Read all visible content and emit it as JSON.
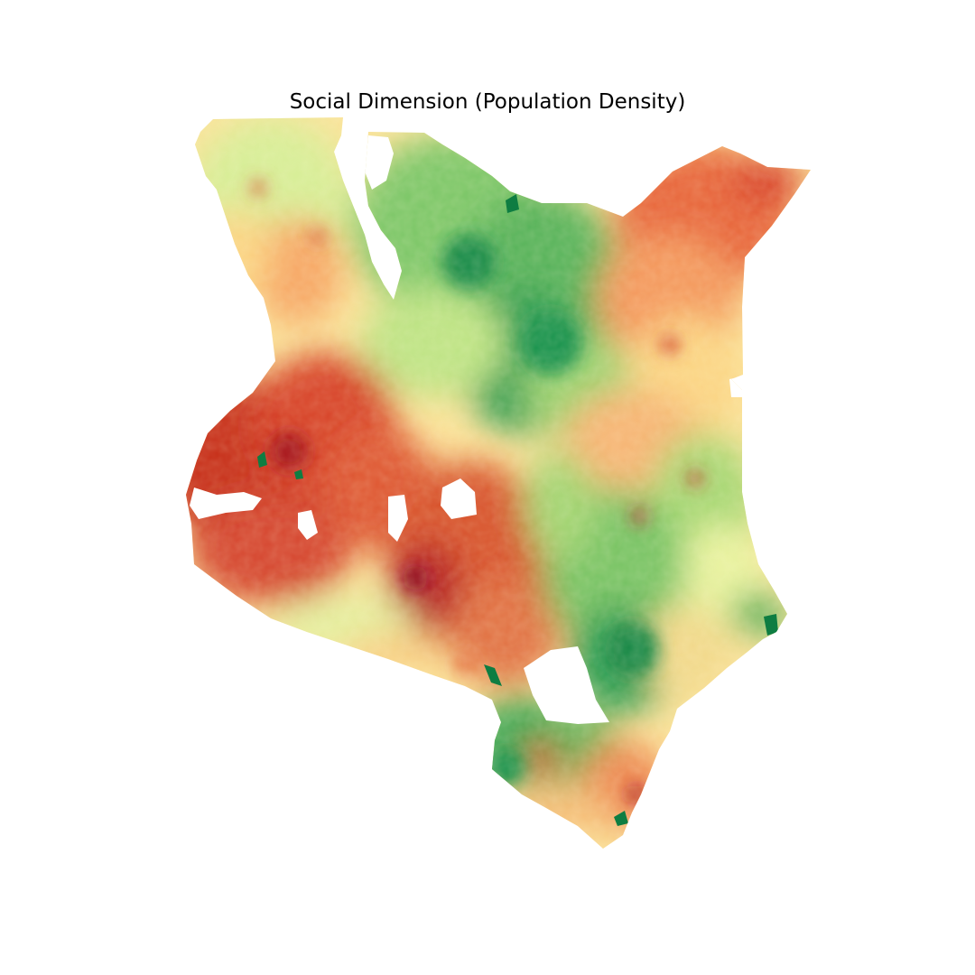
{
  "title": "Social Dimension (Population Density)",
  "colormap": {
    "name": "RdYlGn",
    "high": "#c0271e",
    "upper": "#e8683c",
    "mid_high": "#f9b66a",
    "mid": "#fef3a8",
    "mid_low": "#c9e88a",
    "low": "#7fc86a",
    "lowest": "#11884a"
  },
  "background": "#ffffff"
}
